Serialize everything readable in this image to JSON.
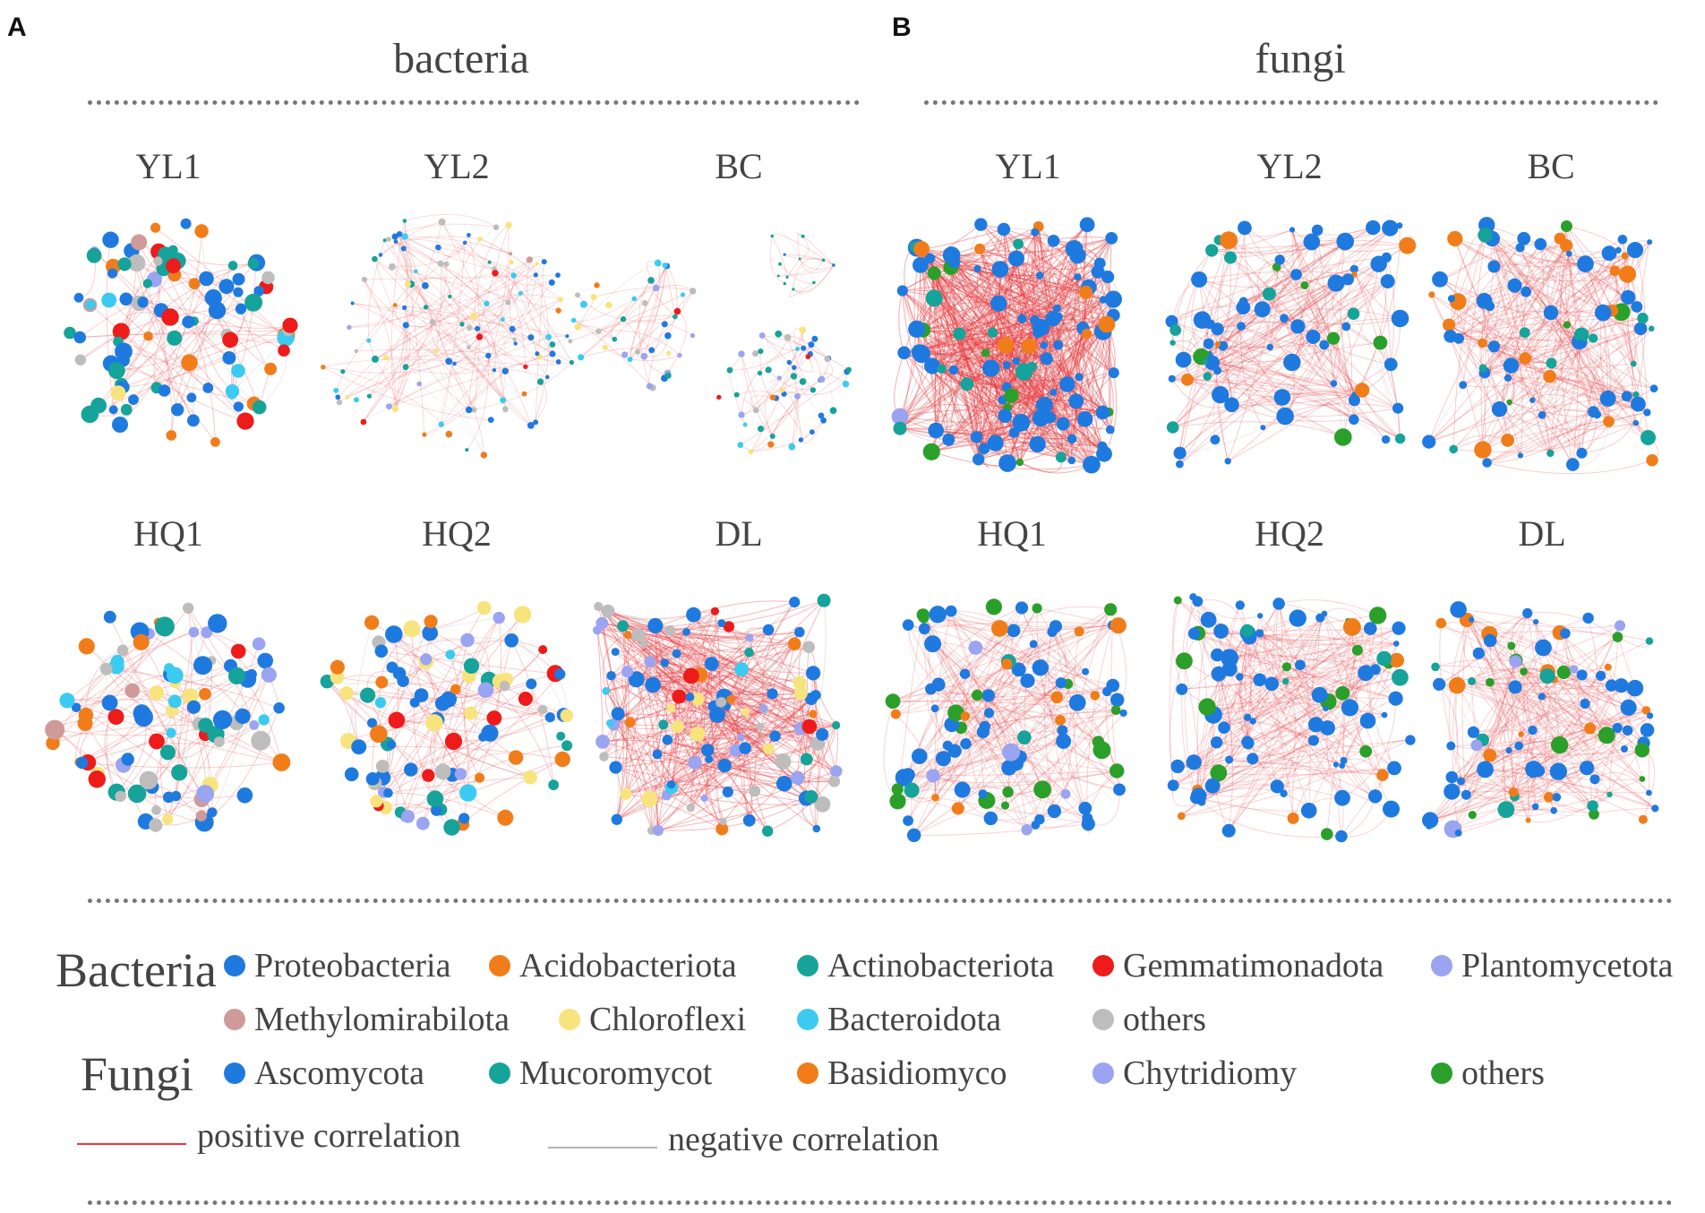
{
  "panels": {
    "a": {
      "letter": "A",
      "title": "bacteria"
    },
    "b": {
      "letter": "B",
      "title": "fungi"
    }
  },
  "networks": {
    "bacteria": [
      "YL1",
      "YL2",
      "BC",
      "HQ1",
      "HQ2",
      "DL"
    ],
    "fungi": [
      "YL1",
      "YL2",
      "BC",
      "HQ1",
      "HQ2",
      "DL"
    ]
  },
  "legend": {
    "bacteria_label": "Bacteria",
    "fungi_label": "Fungi",
    "bacteria": [
      {
        "name": "Proteobacteria",
        "color": "#1f7ae0"
      },
      {
        "name": "Acidobacteriota",
        "color": "#f07d1a"
      },
      {
        "name": "Actinobacteriota",
        "color": "#16a39a"
      },
      {
        "name": "Gemmatimonadota",
        "color": "#ee1b1b"
      },
      {
        "name": "Plantomycetota",
        "color": "#9aa4f0"
      },
      {
        "name": "Methylomirabilota",
        "color": "#d09a98"
      },
      {
        "name": "Chloroflexi",
        "color": "#f8e47c"
      },
      {
        "name": "Bacteroidota",
        "color": "#3ccbf0"
      },
      {
        "name": "others",
        "color": "#bdbdbd"
      }
    ],
    "fungi": [
      {
        "name": "Ascomycota",
        "color": "#1f7ae0"
      },
      {
        "name": "Mucoromycot",
        "color": "#16a39a"
      },
      {
        "name": "Basidiomyco",
        "color": "#f07d1a"
      },
      {
        "name": "Chytridiomy",
        "color": "#9aa4f0"
      },
      {
        "name": "others",
        "color": "#2aa02a"
      }
    ],
    "positive": {
      "label": "positive correlation",
      "color": "#e8363c"
    },
    "negative": {
      "label": "negative correlation",
      "color": "#b5b5b5"
    }
  }
}
